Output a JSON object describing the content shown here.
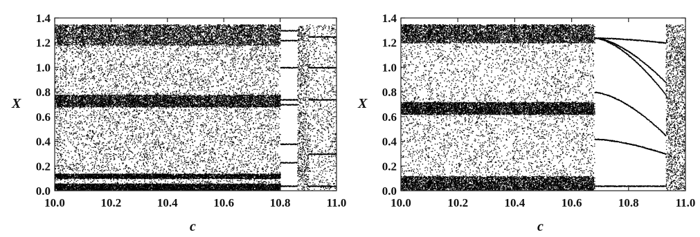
{
  "chart_data": [
    {
      "type": "scatter",
      "title": "",
      "xlabel": "c",
      "ylabel": "X",
      "xlim": [
        10.0,
        11.0
      ],
      "ylim": [
        0.0,
        1.4
      ],
      "x_ticks": [
        "10.0",
        "10.2",
        "10.4",
        "10.6",
        "10.8",
        "11.0"
      ],
      "y_ticks": [
        "0.0",
        "0.2",
        "0.4",
        "0.6",
        "0.8",
        "1.0",
        "1.2",
        "1.4"
      ],
      "grid": false,
      "legend": "none",
      "point_color": "#000000",
      "series": [
        {
          "regimes": [
            {
              "c_range": [
                10.0,
                10.8
              ],
              "behavior": "chaotic",
              "X_range": [
                0.0,
                1.35
              ],
              "dense_bands": [
                [
                  0.0,
                  0.06
                ],
                [
                  0.1,
                  0.14
                ],
                [
                  0.68,
                  0.78
                ],
                [
                  1.18,
                  1.35
                ]
              ]
            },
            {
              "c_range": [
                10.8,
                10.86
              ],
              "behavior": "periodic",
              "branches": [
                0.04,
                0.23,
                0.38,
                0.7,
                0.74,
                1.0,
                1.22,
                1.3
              ]
            },
            {
              "c_range": [
                10.86,
                10.9
              ],
              "behavior": "chaotic-window",
              "X_range": [
                0.0,
                1.35
              ]
            },
            {
              "c_range": [
                10.9,
                11.0
              ],
              "behavior": "mixed",
              "X_range": [
                0.0,
                1.35
              ],
              "branches": [
                0.04,
                0.3,
                0.74,
                1.0,
                1.25
              ]
            }
          ]
        }
      ]
    },
    {
      "type": "scatter",
      "title": "",
      "xlabel": "c",
      "ylabel": "X",
      "xlim": [
        10.0,
        11.0
      ],
      "ylim": [
        0.0,
        1.4
      ],
      "x_ticks": [
        "10.0",
        "10.2",
        "10.4",
        "10.6",
        "10.8",
        "11.0"
      ],
      "y_ticks": [
        "0.0",
        "0.2",
        "0.4",
        "0.6",
        "0.8",
        "1.0",
        "1.2",
        "1.4"
      ],
      "grid": false,
      "legend": "none",
      "point_color": "#000000",
      "series": [
        {
          "regimes": [
            {
              "c_range": [
                10.0,
                10.68
              ],
              "behavior": "chaotic",
              "X_range": [
                0.0,
                1.35
              ],
              "dense_bands": [
                [
                  0.0,
                  0.12
                ],
                [
                  0.62,
                  0.72
                ],
                [
                  1.2,
                  1.35
                ]
              ]
            },
            {
              "c_range": [
                10.68,
                10.93
              ],
              "behavior": "periodic",
              "branches_start": [
                0.04,
                0.42,
                0.8,
                1.24
              ],
              "branches_end": [
                0.04,
                0.3,
                0.45,
                0.78,
                0.88,
                1.2
              ]
            },
            {
              "c_range": [
                10.93,
                11.0
              ],
              "behavior": "chaotic",
              "X_range": [
                0.0,
                1.35
              ]
            }
          ]
        }
      ]
    }
  ]
}
